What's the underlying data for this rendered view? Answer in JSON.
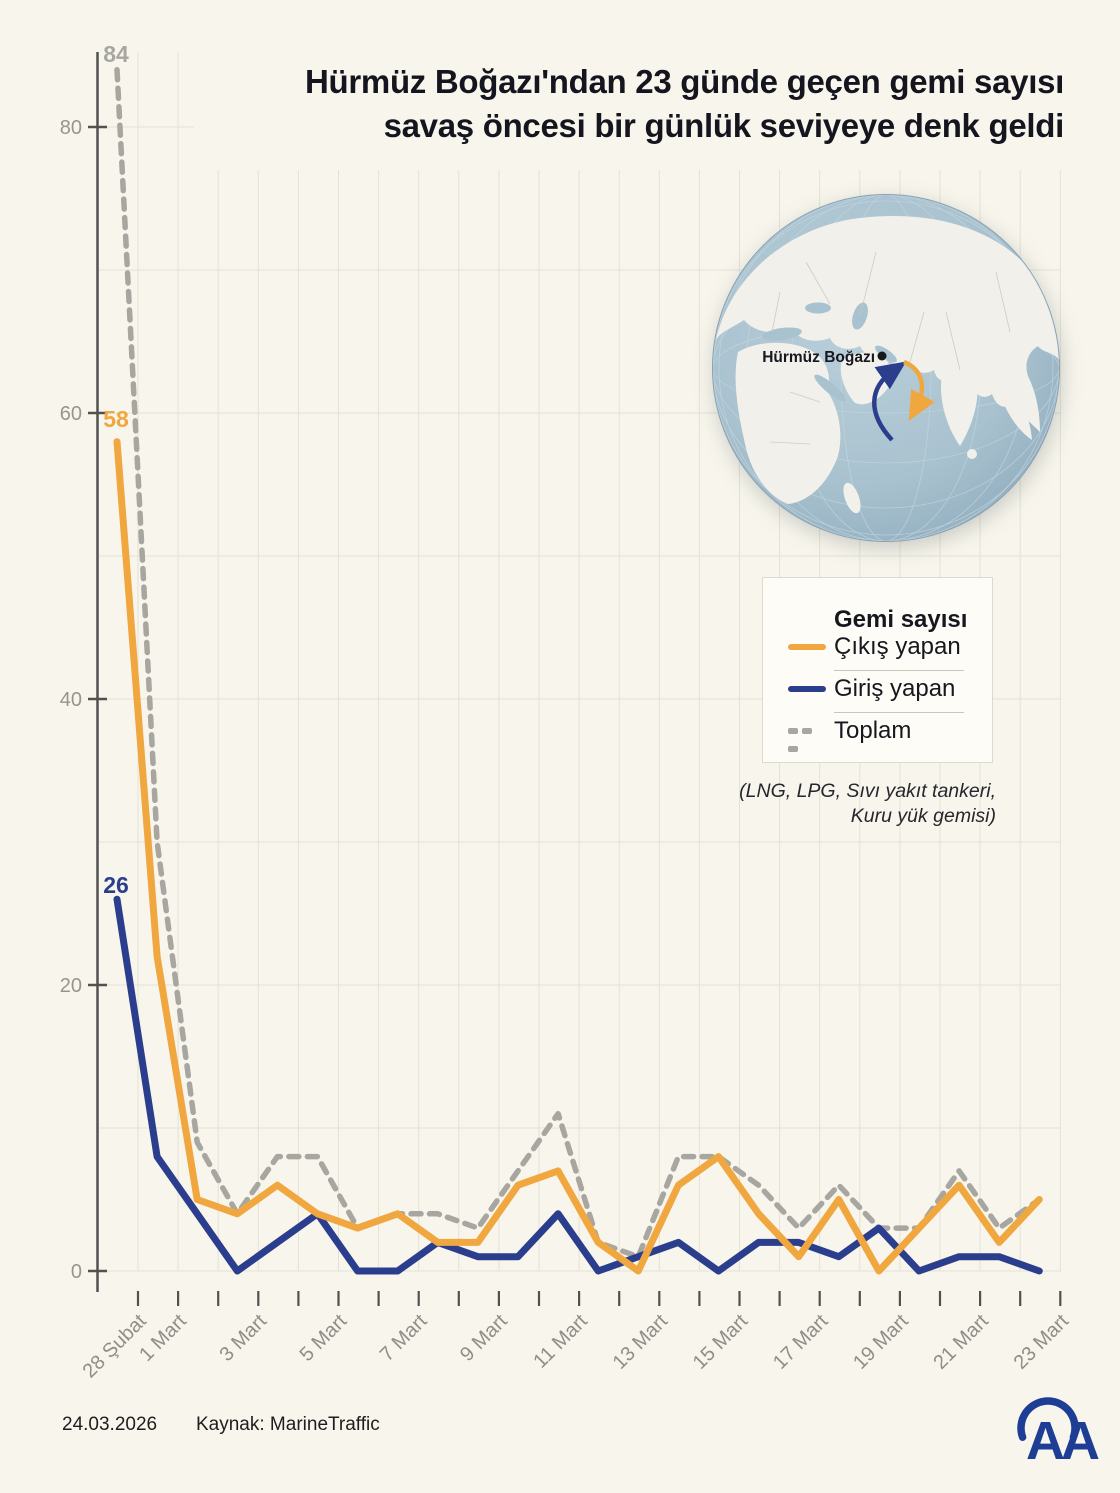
{
  "title": {
    "line1": "Hürmüz Boğazı'ndan 23 günde geçen gemi sayısı",
    "line2": "savaş öncesi bir günlük seviyeye denk geldi"
  },
  "chart_data": {
    "type": "line",
    "categories": [
      "28 Şubat",
      "1 Mart",
      "2 Mart",
      "3 Mart",
      "4 Mart",
      "5 Mart",
      "6 Mart",
      "7 Mart",
      "8 Mart",
      "9 Mart",
      "10 Mart",
      "11 Mart",
      "12 Mart",
      "13 Mart",
      "14 Mart",
      "15 Mart",
      "16 Mart",
      "17 Mart",
      "18 Mart",
      "19 Mart",
      "20 Mart",
      "21 Mart",
      "22 Mart",
      "23 Mart"
    ],
    "labeled_indices": [
      0,
      1,
      3,
      5,
      7,
      9,
      11,
      13,
      15,
      17,
      19,
      21,
      23
    ],
    "series": [
      {
        "name": "Çıkış yapan",
        "color": "#F0A73F",
        "style": "solid",
        "values": [
          58,
          22,
          5,
          4,
          6,
          4,
          3,
          4,
          2,
          2,
          6,
          7,
          2,
          0,
          6,
          8,
          4,
          1,
          5,
          0,
          3,
          6,
          2,
          5
        ],
        "start_label": "58"
      },
      {
        "name": "Giriş yapan",
        "color": "#2B3E8E",
        "style": "solid",
        "values": [
          26,
          8,
          4,
          0,
          2,
          4,
          0,
          0,
          2,
          1,
          1,
          4,
          0,
          1,
          2,
          0,
          2,
          2,
          1,
          3,
          0,
          1,
          1,
          0
        ],
        "start_label": "26"
      },
      {
        "name": "Toplam",
        "color": "#A7A6A0",
        "style": "dashed",
        "values": [
          84,
          30,
          9,
          4,
          8,
          8,
          3,
          4,
          4,
          3,
          7,
          11,
          2,
          1,
          8,
          8,
          6,
          3,
          6,
          3,
          3,
          7,
          3,
          5
        ],
        "start_label": "84"
      }
    ],
    "ylim": [
      0,
      88
    ],
    "yticks": [
      "0",
      "20",
      "40",
      "60",
      "80"
    ],
    "grid_step": 10,
    "grid": true,
    "legend_position": "right-middle",
    "xlabel": "",
    "ylabel": ""
  },
  "legend": {
    "title": "Gemi sayısı",
    "items": [
      {
        "label": "Çıkış yapan",
        "color": "#F0A73F",
        "style": "solid"
      },
      {
        "label": "Giriş yapan",
        "color": "#2B3E8E",
        "style": "solid"
      },
      {
        "label": "Toplam",
        "color": "#A7A6A0",
        "style": "dashed"
      }
    ]
  },
  "note": {
    "line1": "(LNG, LPG, Sıvı yakıt tankeri,",
    "line2": "Kuru yük gemisi)"
  },
  "map": {
    "label": "Hürmüz Boğazı"
  },
  "footer": {
    "date": "24.03.2026",
    "source": "Kaynak: MarineTraffic"
  },
  "logo": {
    "text": "AA"
  },
  "colors": {
    "background": "#F8F6EC",
    "gridline": "#E4E2D4",
    "axis": "#515151",
    "tick_label": "#96958E",
    "ocean": "#A9C2CF",
    "land": "#F1F0EA",
    "logo_blue": "#1E3E96"
  }
}
